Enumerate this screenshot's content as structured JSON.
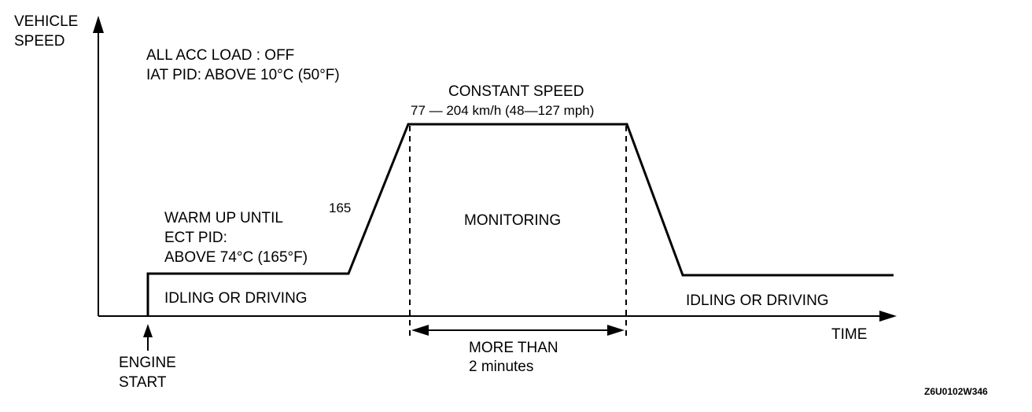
{
  "axes": {
    "y_label_line1": "VEHICLE",
    "y_label_line2": "SPEED",
    "x_label": "TIME"
  },
  "conditions": {
    "line1": "ALL ACC LOAD : OFF",
    "line2": "IAT PID: ABOVE 10°C (50°F)"
  },
  "constant_speed": {
    "title": "CONSTANT SPEED",
    "range": "77 — 204 km/h (48—127 mph)"
  },
  "warm_up": {
    "line1": "WARM UP UNTIL",
    "line2": "ECT PID:",
    "line3": "ABOVE 74°C (165°F)"
  },
  "stray_label": "165",
  "monitoring": "MONITORING",
  "idling_left": "IDLING OR DRIVING",
  "idling_right": "IDLING OR DRIVING",
  "engine_start": {
    "line1": "ENGINE",
    "line2": "START"
  },
  "duration": {
    "line1": "MORE THAN",
    "line2": "2 minutes"
  },
  "figure_code": "Z6U0102W346"
}
